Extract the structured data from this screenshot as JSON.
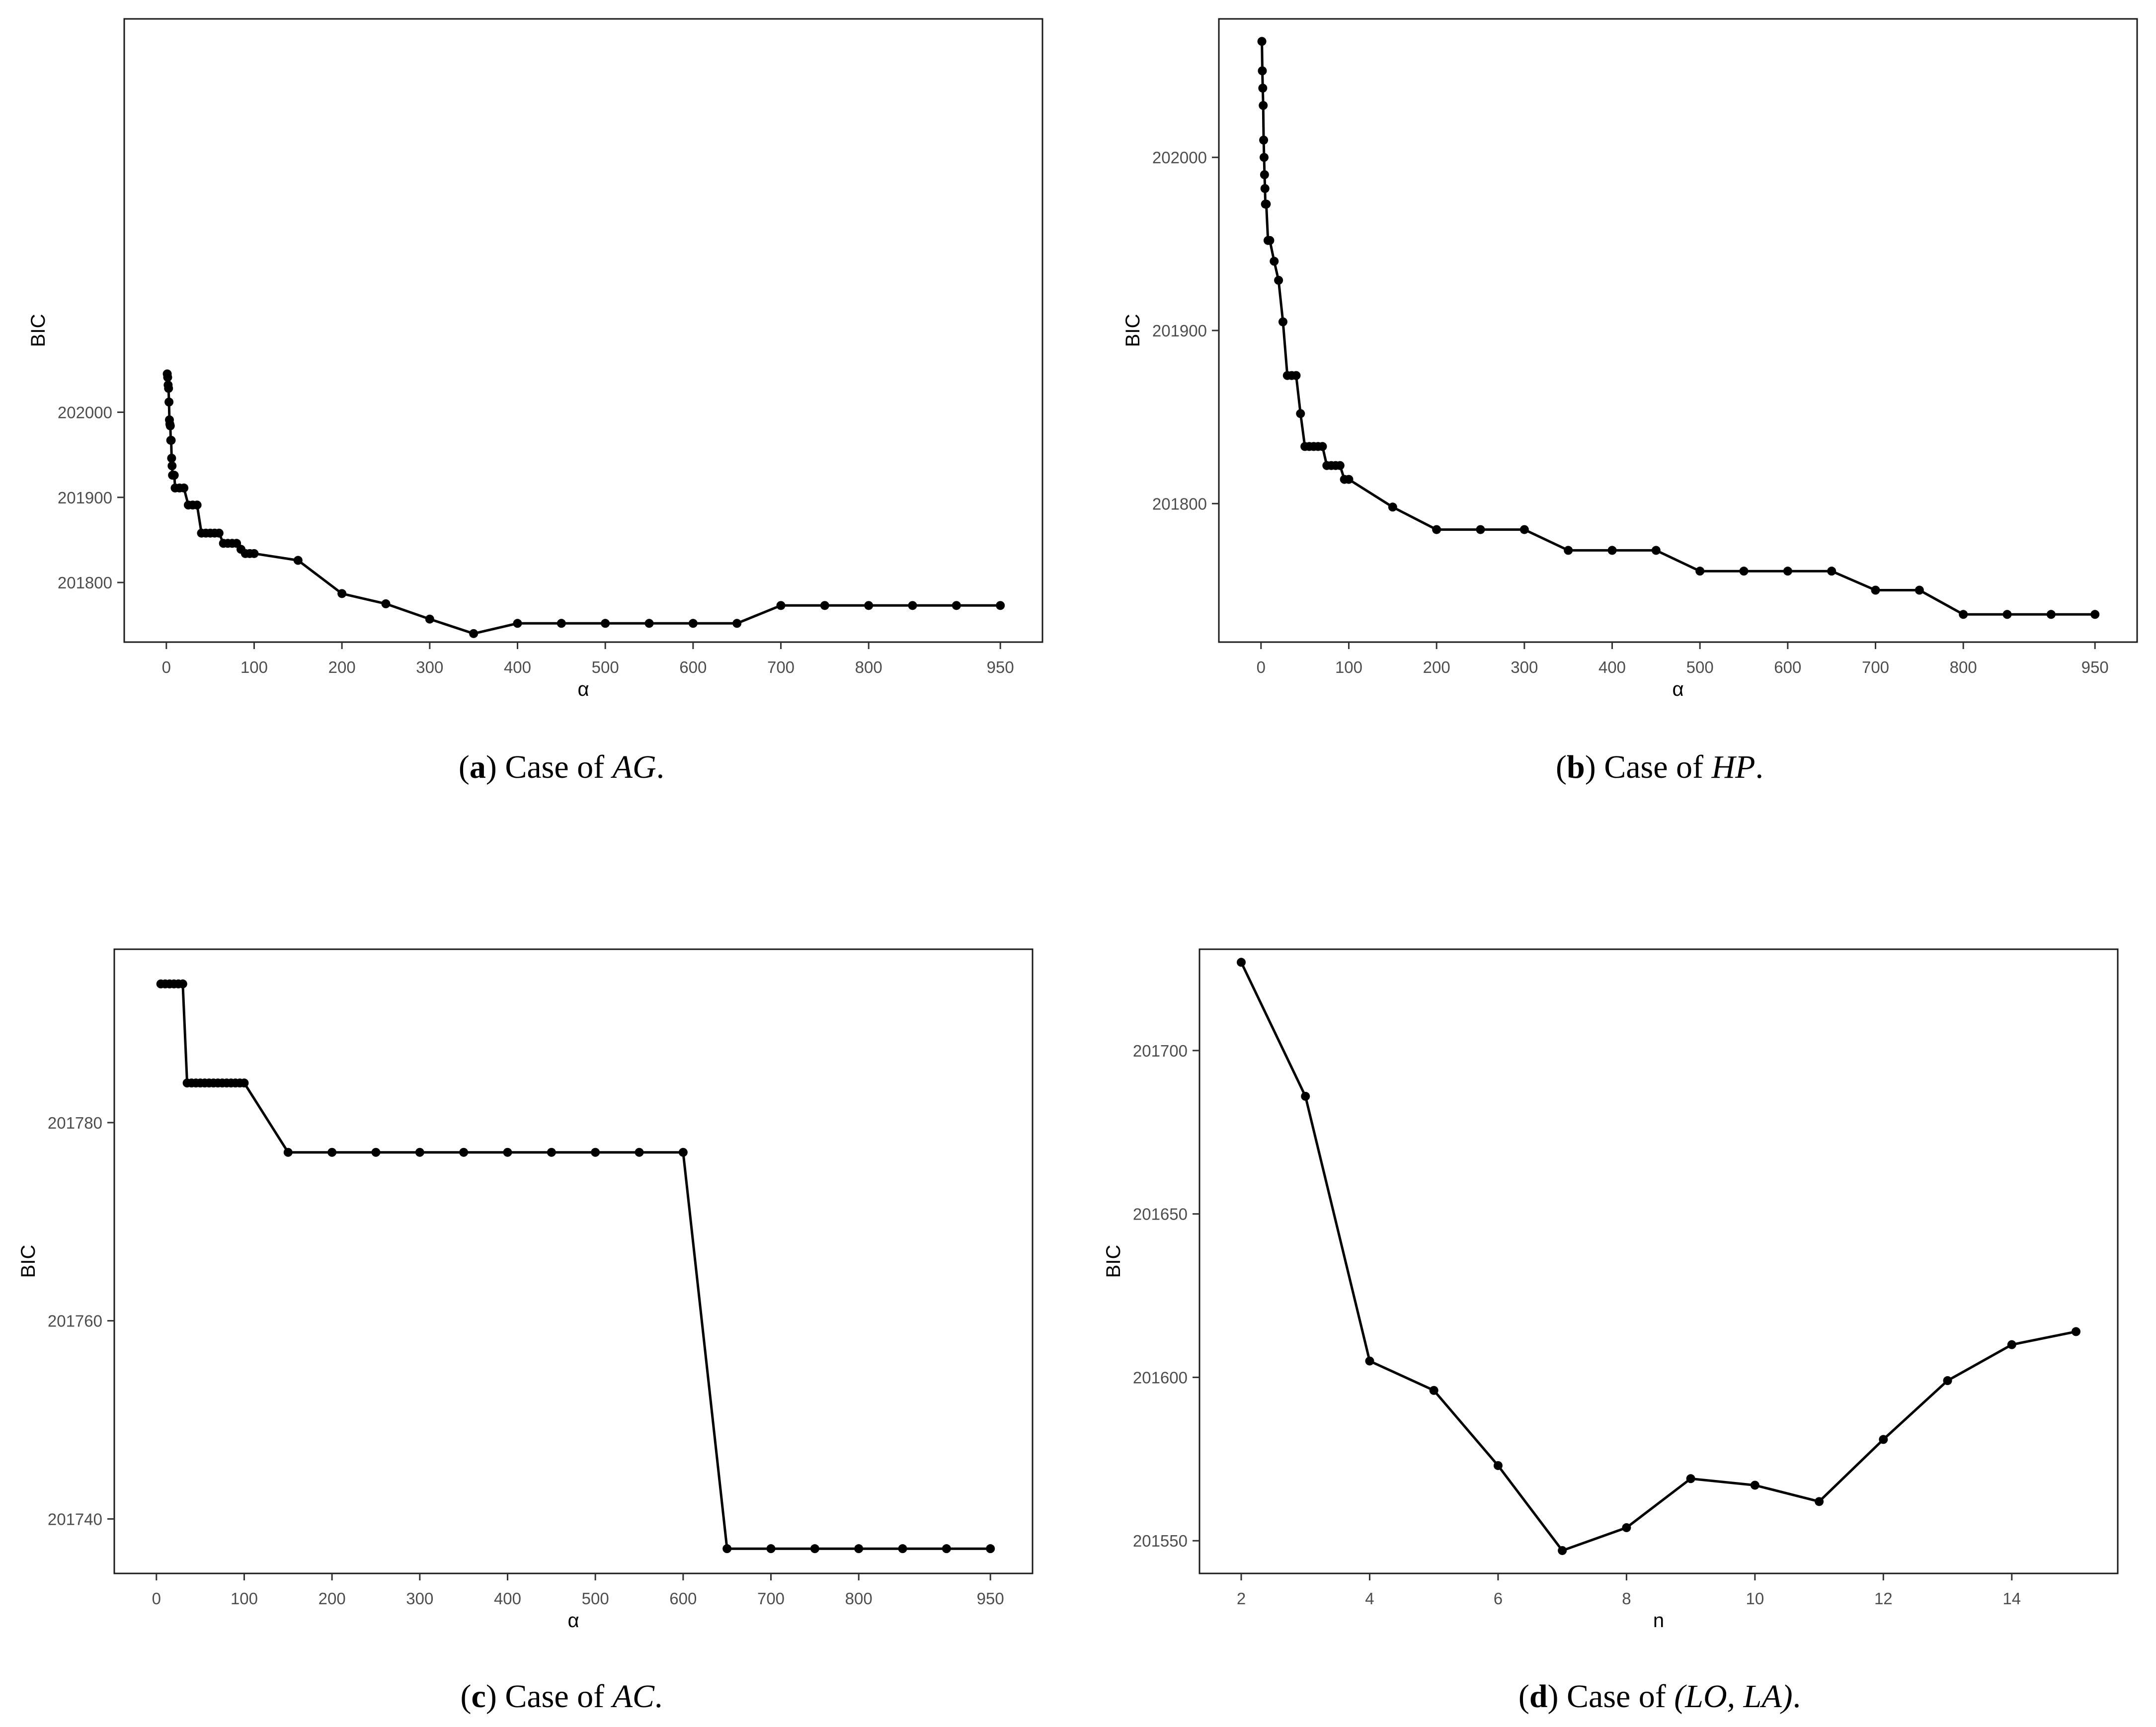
{
  "chart_data": [
    {
      "type": "line",
      "id": "a",
      "caption": {
        "label": "a",
        "text": " Case of ",
        "var": "AG",
        "end": "."
      },
      "xlabel": "α",
      "ylabel": "BIC",
      "xlim": [
        -48,
        998
      ],
      "ylim": [
        201730,
        202462
      ],
      "xticks": [
        0,
        100,
        200,
        300,
        400,
        500,
        600,
        700,
        800,
        950
      ],
      "yticks": [
        201800,
        201900,
        202000
      ],
      "x": [
        1,
        1.5,
        2,
        2.5,
        3,
        3.5,
        4,
        4.5,
        5,
        5.5,
        6,
        6.5,
        7,
        8,
        9,
        10,
        15,
        20,
        25,
        30,
        35,
        40,
        45,
        50,
        55,
        60,
        65,
        70,
        75,
        80,
        85,
        90,
        95,
        100,
        150,
        200,
        250,
        300,
        350,
        400,
        450,
        500,
        550,
        600,
        650,
        700,
        750,
        800,
        850,
        900,
        950
      ],
      "y": [
        202045,
        202041,
        202032,
        202028,
        202012,
        201991,
        201986,
        201984,
        201967,
        201967,
        201946,
        201937,
        201926,
        201926,
        201926,
        201911,
        201911,
        201911,
        201891,
        201891,
        201891,
        201858,
        201858,
        201858,
        201858,
        201858,
        201846,
        201846,
        201846,
        201846,
        201839,
        201834,
        201834,
        201834,
        201826,
        201787,
        201775,
        201757,
        201740,
        201752,
        201752,
        201752,
        201752,
        201752,
        201752,
        201773,
        201773,
        201773,
        201773,
        201773,
        201773
      ]
    },
    {
      "type": "line",
      "id": "b",
      "caption": {
        "label": "b",
        "text": " Case of ",
        "var": "HP",
        "end": "."
      },
      "xlabel": "α",
      "ylabel": "BIC",
      "xlim": [
        -48,
        998
      ],
      "ylim": [
        201720,
        202080
      ],
      "xticks": [
        0,
        100,
        200,
        300,
        400,
        500,
        600,
        700,
        800,
        950
      ],
      "yticks": [
        201800,
        201900,
        202000
      ],
      "x": [
        1,
        1.5,
        2,
        2.5,
        3,
        3.5,
        4,
        4.5,
        5,
        6,
        8,
        10,
        15,
        20,
        25,
        30,
        35,
        40,
        45,
        50,
        55,
        60,
        65,
        70,
        75,
        80,
        85,
        90,
        95,
        100,
        150,
        200,
        250,
        300,
        350,
        400,
        450,
        500,
        550,
        600,
        650,
        700,
        750,
        800,
        850,
        900,
        950
      ],
      "y": [
        202067,
        202050,
        202040,
        202030,
        202010,
        202000,
        201990,
        201982,
        201973,
        201973,
        201952,
        201952,
        201940,
        201929,
        201905,
        201874,
        201874,
        201874,
        201852,
        201833,
        201833,
        201833,
        201833,
        201833,
        201822,
        201822,
        201822,
        201822,
        201814,
        201814,
        201798,
        201785,
        201785,
        201785,
        201773,
        201773,
        201773,
        201761,
        201761,
        201761,
        201761,
        201750,
        201750,
        201736,
        201736,
        201736,
        201736
      ]
    },
    {
      "type": "line",
      "id": "c",
      "caption": {
        "label": "c",
        "text": " Case of ",
        "var": "AC",
        "end": "."
      },
      "xlabel": "α",
      "ylabel": "BIC",
      "xlim": [
        -48,
        998
      ],
      "ylim": [
        201734.5,
        201797.5
      ],
      "xticks": [
        0,
        100,
        200,
        300,
        400,
        500,
        600,
        700,
        800,
        950
      ],
      "yticks": [
        201740,
        201760,
        201780
      ],
      "x": [
        5,
        10,
        15,
        20,
        25,
        30,
        35,
        40,
        45,
        50,
        55,
        60,
        65,
        70,
        75,
        80,
        85,
        90,
        95,
        100,
        150,
        200,
        250,
        300,
        350,
        400,
        450,
        500,
        550,
        600,
        650,
        700,
        750,
        800,
        850,
        900,
        950
      ],
      "y": [
        201794,
        201794,
        201794,
        201794,
        201794,
        201794,
        201784,
        201784,
        201784,
        201784,
        201784,
        201784,
        201784,
        201784,
        201784,
        201784,
        201784,
        201784,
        201784,
        201784,
        201777,
        201777,
        201777,
        201777,
        201777,
        201777,
        201777,
        201777,
        201777,
        201777,
        201737,
        201737,
        201737,
        201737,
        201737,
        201737,
        201737
      ]
    },
    {
      "type": "line",
      "id": "d",
      "caption": {
        "label": "d",
        "text": " Case of ",
        "var": "(LO, LA)",
        "end": "."
      },
      "xlabel": "n",
      "ylabel": "BIC",
      "xlim": [
        1.35,
        15.65
      ],
      "ylim": [
        201540,
        201731
      ],
      "xticks": [
        2,
        4,
        6,
        8,
        10,
        12,
        14
      ],
      "yticks": [
        201550,
        201600,
        201650,
        201700
      ],
      "x": [
        2,
        3,
        4,
        5,
        6,
        7,
        8,
        9,
        10,
        11,
        12,
        13,
        14,
        15
      ],
      "y": [
        201727,
        201686,
        201605,
        201596,
        201573,
        201547,
        201554,
        201569,
        201567,
        201562,
        201581,
        201599,
        201610,
        201614
      ]
    }
  ]
}
